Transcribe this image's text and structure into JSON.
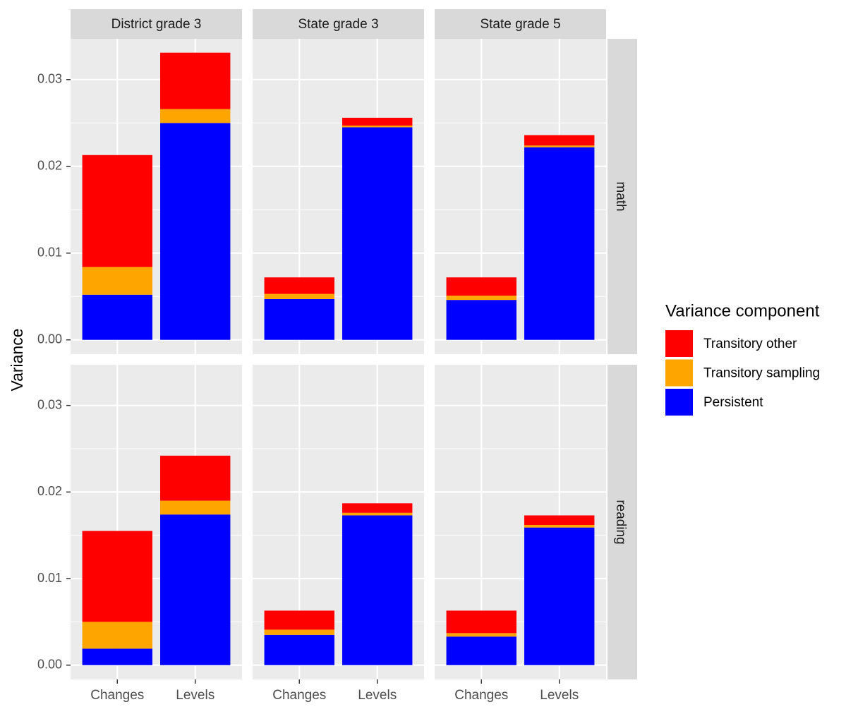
{
  "chart_data": {
    "type": "bar",
    "stacked": true,
    "ylabel": "Variance",
    "legend_title": "Variance component",
    "legend": "right",
    "col_facets": [
      "District grade 3",
      "State grade 3",
      "State grade 5"
    ],
    "row_facets": [
      "math",
      "reading"
    ],
    "categories": [
      "Changes",
      "Levels"
    ],
    "ylim": [
      -0.00165,
      0.0347
    ],
    "yticks": [
      {
        "value": 0,
        "label": "0.00"
      },
      0.01,
      0.02,
      0.03
    ],
    "grid": true,
    "series": [
      {
        "name": "Transitory other",
        "color": "#ff0000",
        "values": [
          [
            [
              0.0129,
              0.0065
            ],
            [
              0.0019,
              0.0009
            ],
            [
              0.0021,
              0.0012
            ]
          ],
          [
            [
              0.0105,
              0.0052
            ],
            [
              0.0022,
              0.0011
            ],
            [
              0.0026,
              0.0011
            ]
          ]
        ]
      },
      {
        "name": "Transitory sampling",
        "color": "#ffa500",
        "values": [
          [
            [
              0.0032,
              0.0016
            ],
            [
              0.0006,
              0.0002
            ],
            [
              0.0005,
              0.0002
            ]
          ],
          [
            [
              0.0031,
              0.0016
            ],
            [
              0.0006,
              0.0003
            ],
            [
              0.0004,
              0.0003
            ]
          ]
        ]
      },
      {
        "name": "Persistent",
        "color": "#0000ff",
        "values": [
          [
            [
              0.0052,
              0.025
            ],
            [
              0.0047,
              0.0245
            ],
            [
              0.0046,
              0.0222
            ]
          ],
          [
            [
              0.0019,
              0.0174
            ],
            [
              0.0035,
              0.0173
            ],
            [
              0.0033,
              0.0159
            ]
          ]
        ]
      }
    ]
  }
}
